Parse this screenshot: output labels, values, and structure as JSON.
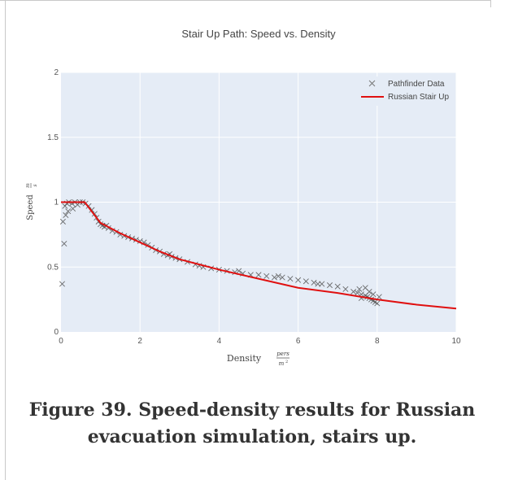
{
  "caption": "Figure 39. Speed-density results for Russian evacuation simulation, stairs up.",
  "chart_data": {
    "type": "scatter",
    "title": "Stair Up Path: Speed vs. Density",
    "xlabel": "Density",
    "xlabel_unit_num": "pers",
    "xlabel_unit_den": "m",
    "xlabel_unit_den_exp": "2",
    "ylabel": "Speed",
    "ylabel_unit_num": "m",
    "ylabel_unit_den": "s",
    "xlim": [
      0,
      10
    ],
    "ylim": [
      0,
      2
    ],
    "x_ticks": [
      0,
      2,
      4,
      6,
      8,
      10
    ],
    "y_ticks": [
      0,
      0.5,
      1,
      1.5,
      2
    ],
    "x_tick_labels": [
      "0",
      "2",
      "4",
      "6",
      "8",
      "10"
    ],
    "y_tick_labels": [
      "0",
      "0.5",
      "1",
      "1.5",
      "2"
    ],
    "grid": true,
    "legend_position": "top-right",
    "colors": {
      "plot_background": "#e5ecf6",
      "grid": "#ffffff",
      "markers": "#555555",
      "line": "#e01010"
    },
    "series": [
      {
        "name": "Pathfinder Data",
        "kind": "scatter",
        "marker": "x",
        "points": [
          [
            0.03,
            0.37
          ],
          [
            0.08,
            0.68
          ],
          [
            0.05,
            0.85
          ],
          [
            0.12,
            0.9
          ],
          [
            0.18,
            0.93
          ],
          [
            0.1,
            0.97
          ],
          [
            0.2,
            1.0
          ],
          [
            0.28,
            0.99
          ],
          [
            0.35,
            1.0
          ],
          [
            0.42,
            0.98
          ],
          [
            0.48,
            1.0
          ],
          [
            0.55,
            1.0
          ],
          [
            0.62,
            0.99
          ],
          [
            0.3,
            0.95
          ],
          [
            0.15,
            0.99
          ],
          [
            0.7,
            0.97
          ],
          [
            0.78,
            0.94
          ],
          [
            0.85,
            0.91
          ],
          [
            0.9,
            0.88
          ],
          [
            0.95,
            0.85
          ],
          [
            1.0,
            0.83
          ],
          [
            1.05,
            0.82
          ],
          [
            1.1,
            0.81
          ],
          [
            1.15,
            0.82
          ],
          [
            1.2,
            0.8
          ],
          [
            1.3,
            0.78
          ],
          [
            1.4,
            0.77
          ],
          [
            1.5,
            0.75
          ],
          [
            1.6,
            0.74
          ],
          [
            1.7,
            0.73
          ],
          [
            1.8,
            0.72
          ],
          [
            1.9,
            0.71
          ],
          [
            2.0,
            0.7
          ],
          [
            2.1,
            0.69
          ],
          [
            2.2,
            0.67
          ],
          [
            2.3,
            0.65
          ],
          [
            2.4,
            0.63
          ],
          [
            2.5,
            0.62
          ],
          [
            2.6,
            0.6
          ],
          [
            2.7,
            0.59
          ],
          [
            2.8,
            0.58
          ],
          [
            2.9,
            0.57
          ],
          [
            3.0,
            0.56
          ],
          [
            3.2,
            0.54
          ],
          [
            3.4,
            0.52
          ],
          [
            3.6,
            0.5
          ],
          [
            3.8,
            0.49
          ],
          [
            4.0,
            0.48
          ],
          [
            4.2,
            0.47
          ],
          [
            4.4,
            0.46
          ],
          [
            4.6,
            0.45
          ],
          [
            4.8,
            0.44
          ],
          [
            5.0,
            0.44
          ],
          [
            5.2,
            0.43
          ],
          [
            5.4,
            0.42
          ],
          [
            5.6,
            0.42
          ],
          [
            5.8,
            0.41
          ],
          [
            6.0,
            0.4
          ],
          [
            6.2,
            0.39
          ],
          [
            6.4,
            0.38
          ],
          [
            6.6,
            0.37
          ],
          [
            6.8,
            0.36
          ],
          [
            7.0,
            0.35
          ],
          [
            7.2,
            0.33
          ],
          [
            7.4,
            0.31
          ],
          [
            7.5,
            0.3
          ],
          [
            7.6,
            0.29
          ],
          [
            7.7,
            0.28
          ],
          [
            7.75,
            0.27
          ],
          [
            7.8,
            0.26
          ],
          [
            7.85,
            0.25
          ],
          [
            7.9,
            0.24
          ],
          [
            7.95,
            0.23
          ],
          [
            8.0,
            0.22
          ],
          [
            7.7,
            0.34
          ],
          [
            7.8,
            0.31
          ],
          [
            7.6,
            0.26
          ],
          [
            7.9,
            0.29
          ],
          [
            8.05,
            0.27
          ],
          [
            7.55,
            0.33
          ],
          [
            6.5,
            0.37
          ],
          [
            5.5,
            0.43
          ],
          [
            4.5,
            0.47
          ],
          [
            3.5,
            0.51
          ],
          [
            2.75,
            0.6
          ]
        ]
      },
      {
        "name": "Russian Stair Up",
        "kind": "line",
        "points": [
          [
            0.0,
            1.0
          ],
          [
            0.6,
            1.0
          ],
          [
            1.0,
            0.84
          ],
          [
            1.5,
            0.76
          ],
          [
            2.0,
            0.69
          ],
          [
            2.5,
            0.62
          ],
          [
            3.0,
            0.56
          ],
          [
            4.0,
            0.48
          ],
          [
            5.0,
            0.41
          ],
          [
            6.0,
            0.34
          ],
          [
            7.0,
            0.3
          ],
          [
            8.0,
            0.25
          ],
          [
            9.0,
            0.21
          ],
          [
            10.0,
            0.18
          ]
        ]
      }
    ]
  }
}
